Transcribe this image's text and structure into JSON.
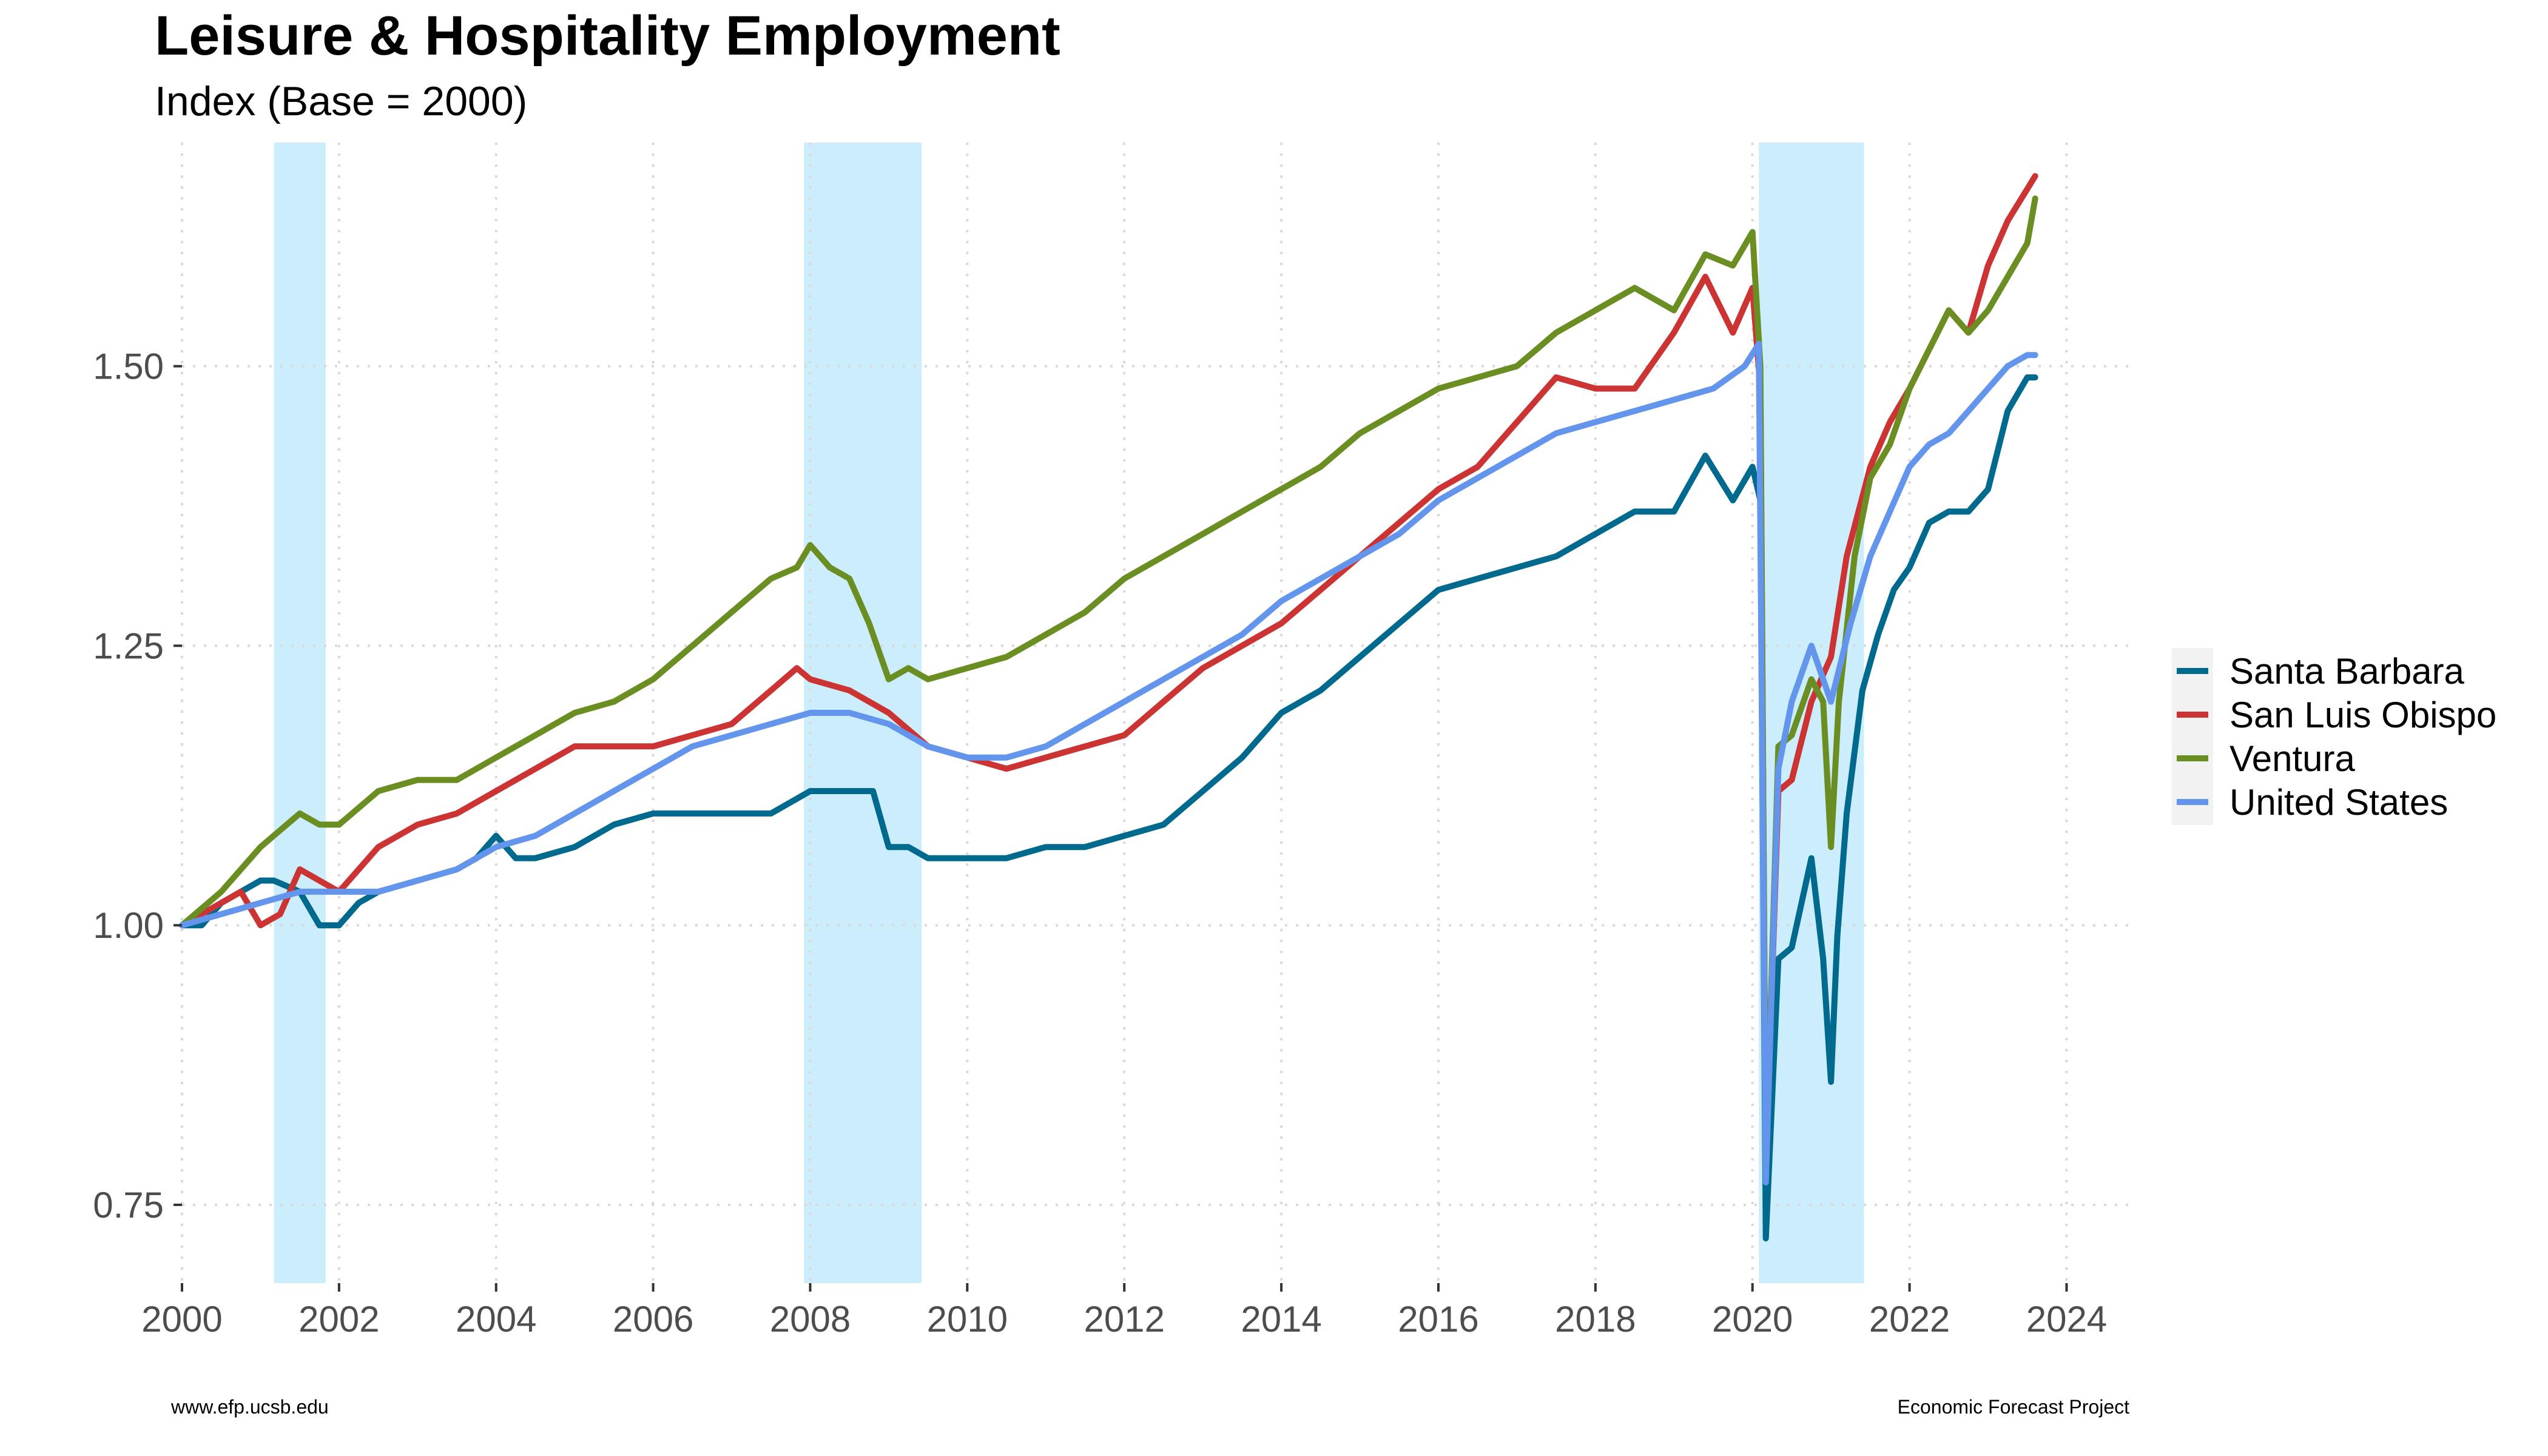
{
  "chart_data": {
    "type": "line",
    "title": "Leisure & Hospitality Employment",
    "subtitle": "Index (Base = 2000)",
    "xlabel": "",
    "ylabel": "",
    "xlim": [
      2000,
      2024.8
    ],
    "ylim": [
      0.68,
      1.7
    ],
    "x_ticks": [
      2000,
      2002,
      2004,
      2006,
      2008,
      2010,
      2012,
      2014,
      2016,
      2018,
      2020,
      2022,
      2024
    ],
    "y_ticks": [
      0.75,
      1.0,
      1.25,
      1.5
    ],
    "y_tick_labels": [
      "0.75",
      "1.00",
      "1.25",
      "1.50"
    ],
    "grid": true,
    "legend_position": "right",
    "recessions": [
      [
        2001.17,
        2001.83
      ],
      [
        2007.92,
        2009.42
      ],
      [
        2020.08,
        2021.42
      ]
    ],
    "recession_color": "#cceefc",
    "series": [
      {
        "name": "Santa Barbara",
        "color": "#006a8e",
        "x": [
          2000.0,
          2000.25,
          2000.5,
          2000.75,
          2001.0,
          2001.17,
          2001.5,
          2001.75,
          2002.0,
          2002.25,
          2002.5,
          2003.0,
          2003.5,
          2003.75,
          2004.0,
          2004.25,
          2004.5,
          2005.0,
          2005.5,
          2006.0,
          2006.5,
          2007.0,
          2007.5,
          2008.0,
          2008.5,
          2008.8,
          2009.0,
          2009.25,
          2009.5,
          2010.0,
          2010.5,
          2011.0,
          2011.5,
          2012.0,
          2012.5,
          2013.0,
          2013.5,
          2014.0,
          2014.5,
          2015.0,
          2015.5,
          2016.0,
          2016.5,
          2017.0,
          2017.5,
          2018.0,
          2018.5,
          2019.0,
          2019.4,
          2019.75,
          2020.0,
          2020.1,
          2020.17,
          2020.33,
          2020.5,
          2020.75,
          2020.9,
          2021.0,
          2021.08,
          2021.2,
          2021.4,
          2021.6,
          2021.8,
          2022.0,
          2022.25,
          2022.5,
          2022.75,
          2023.0,
          2023.25,
          2023.5,
          2023.6
        ],
        "values": [
          1.0,
          1.0,
          1.02,
          1.03,
          1.04,
          1.04,
          1.03,
          1.0,
          1.0,
          1.02,
          1.03,
          1.04,
          1.05,
          1.06,
          1.08,
          1.06,
          1.06,
          1.07,
          1.09,
          1.1,
          1.1,
          1.1,
          1.1,
          1.12,
          1.12,
          1.12,
          1.07,
          1.07,
          1.06,
          1.06,
          1.06,
          1.07,
          1.07,
          1.08,
          1.09,
          1.12,
          1.15,
          1.19,
          1.21,
          1.24,
          1.27,
          1.3,
          1.31,
          1.32,
          1.33,
          1.35,
          1.37,
          1.37,
          1.42,
          1.38,
          1.41,
          1.38,
          0.72,
          0.97,
          0.98,
          1.06,
          0.97,
          0.86,
          0.99,
          1.1,
          1.21,
          1.26,
          1.3,
          1.32,
          1.36,
          1.37,
          1.37,
          1.39,
          1.46,
          1.49,
          1.49
        ]
      },
      {
        "name": "San Luis Obispo",
        "color": "#cc3333",
        "x": [
          2000.0,
          2000.25,
          2000.5,
          2000.75,
          2001.0,
          2001.25,
          2001.5,
          2001.75,
          2002.0,
          2002.5,
          2003.0,
          2003.5,
          2004.0,
          2004.5,
          2005.0,
          2005.5,
          2006.0,
          2006.5,
          2007.0,
          2007.5,
          2007.83,
          2008.0,
          2008.5,
          2009.0,
          2009.5,
          2010.0,
          2010.5,
          2011.0,
          2011.5,
          2012.0,
          2012.5,
          2013.0,
          2013.5,
          2014.0,
          2014.5,
          2015.0,
          2015.5,
          2016.0,
          2016.5,
          2017.0,
          2017.5,
          2018.0,
          2018.5,
          2019.0,
          2019.4,
          2019.75,
          2020.0,
          2020.1,
          2020.17,
          2020.33,
          2020.5,
          2020.75,
          2021.0,
          2021.2,
          2021.5,
          2021.75,
          2022.0,
          2022.5,
          2022.75,
          2023.0,
          2023.25,
          2023.6
        ],
        "values": [
          1.0,
          1.01,
          1.02,
          1.03,
          1.0,
          1.01,
          1.05,
          1.04,
          1.03,
          1.07,
          1.09,
          1.1,
          1.12,
          1.14,
          1.16,
          1.16,
          1.16,
          1.17,
          1.18,
          1.21,
          1.23,
          1.22,
          1.21,
          1.19,
          1.16,
          1.15,
          1.14,
          1.15,
          1.16,
          1.17,
          1.2,
          1.23,
          1.25,
          1.27,
          1.3,
          1.33,
          1.36,
          1.39,
          1.41,
          1.45,
          1.49,
          1.48,
          1.48,
          1.53,
          1.58,
          1.53,
          1.57,
          1.48,
          0.78,
          1.12,
          1.13,
          1.2,
          1.24,
          1.33,
          1.41,
          1.45,
          1.48,
          1.55,
          1.53,
          1.59,
          1.63,
          1.67
        ]
      },
      {
        "name": "Ventura",
        "color": "#6b8e23",
        "x": [
          2000.0,
          2000.5,
          2001.0,
          2001.5,
          2001.75,
          2002.0,
          2002.5,
          2003.0,
          2003.5,
          2004.0,
          2004.5,
          2005.0,
          2005.5,
          2006.0,
          2006.5,
          2007.0,
          2007.5,
          2007.83,
          2008.0,
          2008.25,
          2008.5,
          2008.75,
          2009.0,
          2009.25,
          2009.5,
          2010.0,
          2010.5,
          2011.0,
          2011.5,
          2012.0,
          2012.5,
          2013.0,
          2013.5,
          2014.0,
          2014.5,
          2015.0,
          2015.5,
          2016.0,
          2016.5,
          2017.0,
          2017.5,
          2018.0,
          2018.5,
          2019.0,
          2019.4,
          2019.75,
          2020.0,
          2020.1,
          2020.17,
          2020.33,
          2020.5,
          2020.75,
          2020.9,
          2021.0,
          2021.1,
          2021.3,
          2021.5,
          2021.75,
          2022.0,
          2022.5,
          2022.75,
          2023.0,
          2023.25,
          2023.5,
          2023.6
        ],
        "values": [
          1.0,
          1.03,
          1.07,
          1.1,
          1.09,
          1.09,
          1.12,
          1.13,
          1.13,
          1.15,
          1.17,
          1.19,
          1.2,
          1.22,
          1.25,
          1.28,
          1.31,
          1.32,
          1.34,
          1.32,
          1.31,
          1.27,
          1.22,
          1.23,
          1.22,
          1.23,
          1.24,
          1.26,
          1.28,
          1.31,
          1.33,
          1.35,
          1.37,
          1.39,
          1.41,
          1.44,
          1.46,
          1.48,
          1.49,
          1.5,
          1.53,
          1.55,
          1.57,
          1.55,
          1.6,
          1.59,
          1.62,
          1.5,
          0.78,
          1.16,
          1.17,
          1.22,
          1.2,
          1.07,
          1.2,
          1.33,
          1.4,
          1.43,
          1.48,
          1.55,
          1.53,
          1.55,
          1.58,
          1.61,
          1.65
        ]
      },
      {
        "name": "United States",
        "color": "#6495ed",
        "x": [
          2000.0,
          2000.5,
          2001.0,
          2001.5,
          2002.0,
          2002.5,
          2003.0,
          2003.5,
          2004.0,
          2004.5,
          2005.0,
          2005.5,
          2006.0,
          2006.5,
          2007.0,
          2007.5,
          2008.0,
          2008.5,
          2009.0,
          2009.5,
          2010.0,
          2010.5,
          2011.0,
          2011.5,
          2012.0,
          2012.5,
          2013.0,
          2013.5,
          2014.0,
          2014.5,
          2015.0,
          2015.5,
          2016.0,
          2016.5,
          2017.0,
          2017.5,
          2018.0,
          2018.5,
          2019.0,
          2019.5,
          2019.9,
          2020.08,
          2020.17,
          2020.33,
          2020.5,
          2020.75,
          2021.0,
          2021.25,
          2021.5,
          2021.75,
          2022.0,
          2022.25,
          2022.5,
          2022.75,
          2023.0,
          2023.25,
          2023.5,
          2023.6
        ],
        "values": [
          1.0,
          1.01,
          1.02,
          1.03,
          1.03,
          1.03,
          1.04,
          1.05,
          1.07,
          1.08,
          1.1,
          1.12,
          1.14,
          1.16,
          1.17,
          1.18,
          1.19,
          1.19,
          1.18,
          1.16,
          1.15,
          1.15,
          1.16,
          1.18,
          1.2,
          1.22,
          1.24,
          1.26,
          1.29,
          1.31,
          1.33,
          1.35,
          1.38,
          1.4,
          1.42,
          1.44,
          1.45,
          1.46,
          1.47,
          1.48,
          1.5,
          1.52,
          0.77,
          1.14,
          1.2,
          1.25,
          1.2,
          1.27,
          1.33,
          1.37,
          1.41,
          1.43,
          1.44,
          1.46,
          1.48,
          1.5,
          1.51,
          1.51
        ]
      }
    ]
  },
  "footer": {
    "left": "www.efp.ucsb.edu",
    "right": "Economic Forecast Project"
  }
}
